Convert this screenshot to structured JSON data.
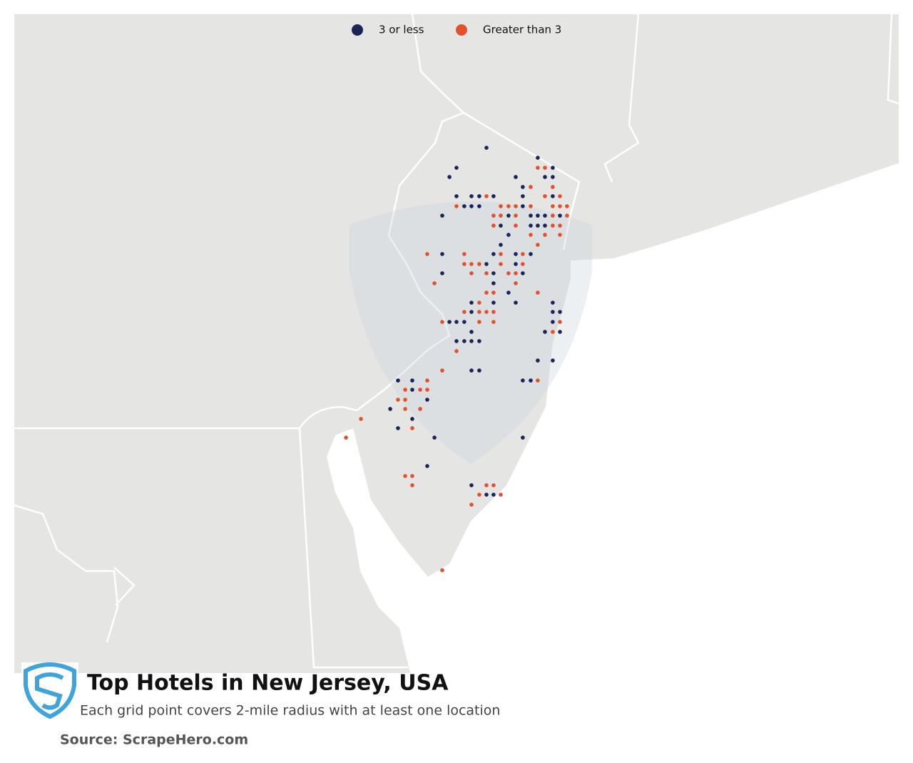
{
  "map_data": {
    "title": "Top Hotels in New Jersey, USA",
    "subtitle": "Each grid point covers 2-mile radius with at least one location",
    "source": "Source: ScrapeHero.com",
    "series": [
      {
        "name": "3 or less",
        "color": "#1b2459",
        "points": [
          [
            -74.593,
            41.176
          ],
          [
            -74.237,
            41.123
          ],
          [
            -74.801,
            41.07
          ],
          [
            -74.133,
            41.07
          ],
          [
            -74.85,
            41.021
          ],
          [
            -74.39,
            41.021
          ],
          [
            -74.187,
            41.021
          ],
          [
            -74.133,
            41.021
          ],
          [
            -74.341,
            40.968
          ],
          [
            -74.801,
            40.919
          ],
          [
            -74.697,
            40.919
          ],
          [
            -74.643,
            40.919
          ],
          [
            -74.544,
            40.919
          ],
          [
            -74.341,
            40.919
          ],
          [
            -74.133,
            40.919
          ],
          [
            -74.747,
            40.866
          ],
          [
            -74.697,
            40.866
          ],
          [
            -74.643,
            40.866
          ],
          [
            -74.341,
            40.866
          ],
          [
            -74.9,
            40.816
          ],
          [
            -74.44,
            40.816
          ],
          [
            -74.286,
            40.816
          ],
          [
            -74.237,
            40.816
          ],
          [
            -74.187,
            40.816
          ],
          [
            -74.083,
            40.816
          ],
          [
            -74.494,
            40.763
          ],
          [
            -74.286,
            40.763
          ],
          [
            -74.237,
            40.763
          ],
          [
            -74.187,
            40.763
          ],
          [
            -74.44,
            40.714
          ],
          [
            -74.494,
            40.661
          ],
          [
            -74.9,
            40.612
          ],
          [
            -74.544,
            40.612
          ],
          [
            -74.39,
            40.612
          ],
          [
            -74.286,
            40.612
          ],
          [
            -74.593,
            40.559
          ],
          [
            -74.39,
            40.559
          ],
          [
            -74.9,
            40.51
          ],
          [
            -74.544,
            40.51
          ],
          [
            -74.341,
            40.51
          ],
          [
            -74.544,
            40.457
          ],
          [
            -74.44,
            40.407
          ],
          [
            -74.697,
            40.354
          ],
          [
            -74.544,
            40.354
          ],
          [
            -74.39,
            40.354
          ],
          [
            -74.133,
            40.354
          ],
          [
            -74.697,
            40.305
          ],
          [
            -74.133,
            40.305
          ],
          [
            -74.083,
            40.305
          ],
          [
            -74.85,
            40.252
          ],
          [
            -74.801,
            40.252
          ],
          [
            -74.747,
            40.252
          ],
          [
            -74.133,
            40.252
          ],
          [
            -74.697,
            40.199
          ],
          [
            -74.187,
            40.199
          ],
          [
            -74.083,
            40.199
          ],
          [
            -74.801,
            40.15
          ],
          [
            -74.747,
            40.15
          ],
          [
            -74.697,
            40.15
          ],
          [
            -74.643,
            40.15
          ],
          [
            -74.237,
            40.047
          ],
          [
            -74.133,
            40.047
          ],
          [
            -74.697,
            39.994
          ],
          [
            -74.643,
            39.994
          ],
          [
            -75.207,
            39.941
          ],
          [
            -75.108,
            39.941
          ],
          [
            -74.341,
            39.941
          ],
          [
            -74.286,
            39.941
          ],
          [
            -75.108,
            39.892
          ],
          [
            -75.004,
            39.839
          ],
          [
            -75.261,
            39.79
          ],
          [
            -75.108,
            39.737
          ],
          [
            -75.207,
            39.688
          ],
          [
            -74.954,
            39.638
          ],
          [
            -74.341,
            39.638
          ],
          [
            -75.004,
            39.487
          ],
          [
            -74.697,
            39.385
          ],
          [
            -74.593,
            39.335
          ],
          [
            -74.544,
            39.335
          ]
        ]
      },
      {
        "name": "Greater than 3",
        "color": "#e4502a",
        "points": [
          [
            -74.237,
            41.07
          ],
          [
            -74.187,
            41.07
          ],
          [
            -74.286,
            40.968
          ],
          [
            -74.133,
            40.968
          ],
          [
            -74.593,
            40.919
          ],
          [
            -74.187,
            40.919
          ],
          [
            -74.083,
            40.919
          ],
          [
            -74.801,
            40.866
          ],
          [
            -74.494,
            40.866
          ],
          [
            -74.44,
            40.866
          ],
          [
            -74.39,
            40.866
          ],
          [
            -74.286,
            40.866
          ],
          [
            -74.133,
            40.866
          ],
          [
            -74.083,
            40.866
          ],
          [
            -74.034,
            40.866
          ],
          [
            -74.544,
            40.816
          ],
          [
            -74.494,
            40.816
          ],
          [
            -74.39,
            40.816
          ],
          [
            -74.133,
            40.816
          ],
          [
            -74.034,
            40.816
          ],
          [
            -74.544,
            40.763
          ],
          [
            -74.39,
            40.763
          ],
          [
            -74.133,
            40.763
          ],
          [
            -74.083,
            40.763
          ],
          [
            -74.286,
            40.714
          ],
          [
            -74.187,
            40.714
          ],
          [
            -74.083,
            40.714
          ],
          [
            -74.237,
            40.661
          ],
          [
            -75.004,
            40.612
          ],
          [
            -74.747,
            40.612
          ],
          [
            -74.494,
            40.612
          ],
          [
            -74.341,
            40.612
          ],
          [
            -74.747,
            40.559
          ],
          [
            -74.697,
            40.559
          ],
          [
            -74.643,
            40.559
          ],
          [
            -74.494,
            40.559
          ],
          [
            -74.341,
            40.559
          ],
          [
            -74.697,
            40.51
          ],
          [
            -74.593,
            40.51
          ],
          [
            -74.44,
            40.51
          ],
          [
            -74.39,
            40.51
          ],
          [
            -74.954,
            40.457
          ],
          [
            -74.39,
            40.457
          ],
          [
            -74.593,
            40.407
          ],
          [
            -74.544,
            40.407
          ],
          [
            -74.237,
            40.407
          ],
          [
            -74.643,
            40.354
          ],
          [
            -74.747,
            40.305
          ],
          [
            -74.643,
            40.305
          ],
          [
            -74.593,
            40.305
          ],
          [
            -74.544,
            40.305
          ],
          [
            -74.9,
            40.252
          ],
          [
            -74.643,
            40.252
          ],
          [
            -74.544,
            40.252
          ],
          [
            -74.083,
            40.252
          ],
          [
            -74.133,
            40.199
          ],
          [
            -74.801,
            40.097
          ],
          [
            -74.9,
            39.994
          ],
          [
            -75.004,
            39.941
          ],
          [
            -74.237,
            39.941
          ],
          [
            -75.157,
            39.892
          ],
          [
            -75.053,
            39.892
          ],
          [
            -75.004,
            39.892
          ],
          [
            -75.207,
            39.839
          ],
          [
            -75.157,
            39.839
          ],
          [
            -75.157,
            39.79
          ],
          [
            -75.053,
            39.79
          ],
          [
            -75.464,
            39.737
          ],
          [
            -75.108,
            39.688
          ],
          [
            -75.568,
            39.638
          ],
          [
            -75.157,
            39.434
          ],
          [
            -75.108,
            39.434
          ],
          [
            -75.108,
            39.385
          ],
          [
            -74.593,
            39.385
          ],
          [
            -74.544,
            39.385
          ],
          [
            -74.643,
            39.335
          ],
          [
            -74.494,
            39.335
          ],
          [
            -74.697,
            39.282
          ],
          [
            -74.9,
            38.934
          ]
        ]
      }
    ]
  }
}
